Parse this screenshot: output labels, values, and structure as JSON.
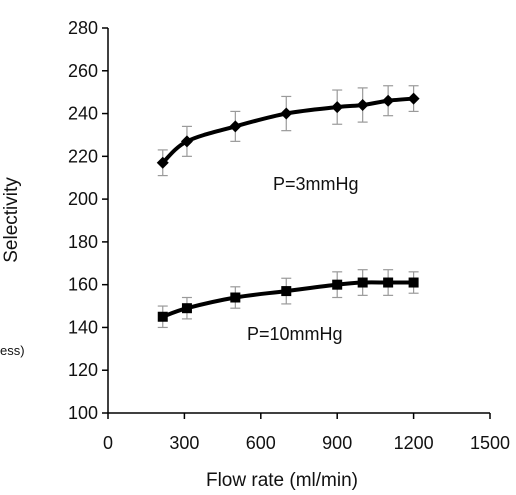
{
  "chart_data": {
    "type": "line",
    "title": "",
    "xlabel": "Flow rate (ml/min)",
    "ylabel": "Selectivity",
    "clipped_label_fragment": "ess)",
    "xlim": [
      0,
      1500
    ],
    "ylim": [
      100,
      280
    ],
    "xticks": [
      0,
      300,
      600,
      900,
      1200,
      1500
    ],
    "yticks": [
      100,
      120,
      140,
      160,
      180,
      200,
      220,
      240,
      260,
      280
    ],
    "grid": false,
    "legend": "none",
    "series": [
      {
        "marker": "diamond",
        "color": "#000000",
        "annotation": "P=3mmHg",
        "x": [
          215,
          310,
          500,
          700,
          900,
          1000,
          1100,
          1200
        ],
        "y": [
          217,
          227,
          234,
          240,
          243,
          244,
          246,
          247
        ],
        "error": [
          6,
          7,
          7,
          8,
          8,
          8,
          7,
          6
        ]
      },
      {
        "marker": "square",
        "color": "#000000",
        "annotation": "P=10mmHg",
        "x": [
          215,
          310,
          500,
          700,
          900,
          1000,
          1100,
          1200
        ],
        "y": [
          145,
          149,
          154,
          157,
          160,
          161,
          161,
          161
        ],
        "error": [
          5,
          5,
          5,
          6,
          6,
          6,
          6,
          5
        ]
      }
    ]
  }
}
